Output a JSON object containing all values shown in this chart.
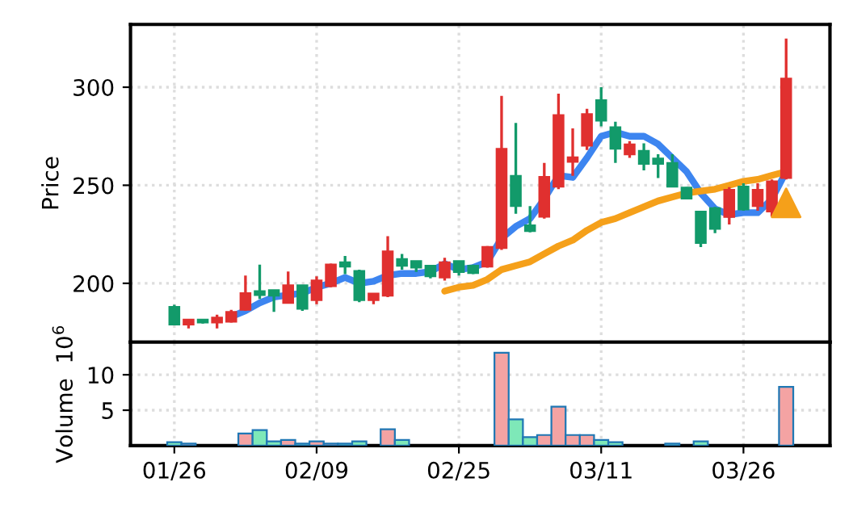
{
  "chart_data": [
    {
      "type": "candlestick",
      "ylabel": "Price",
      "categories": [
        null,
        null,
        null,
        null,
        null,
        null,
        null,
        null,
        null,
        null,
        null,
        null,
        null,
        null,
        null,
        null,
        null,
        null,
        null,
        null,
        null,
        null,
        null,
        null,
        null,
        null,
        null,
        null,
        null,
        null,
        null,
        null,
        null,
        null,
        null,
        null,
        null,
        null,
        null,
        null,
        null,
        null,
        null,
        null
      ],
      "ohlc": [
        [
          188,
          189,
          179,
          179
        ],
        [
          179,
          181.5,
          177,
          181.5
        ],
        [
          181.5,
          181.5,
          179.5,
          180
        ],
        [
          180,
          184,
          177,
          182.5
        ],
        [
          180.4,
          186.5,
          180,
          185.4
        ],
        [
          186.5,
          204,
          186,
          195
        ],
        [
          196,
          209.5,
          192,
          194
        ],
        [
          196.5,
          196.5,
          185.4,
          193.7
        ],
        [
          190,
          206,
          190,
          199
        ],
        [
          199,
          199,
          186,
          187
        ],
        [
          191.5,
          203.6,
          189.3,
          201.4
        ],
        [
          198.6,
          210,
          198,
          209.6
        ],
        [
          210.7,
          214,
          204.7,
          208.5
        ],
        [
          206.3,
          207,
          190.4,
          191.5
        ],
        [
          191.5,
          195,
          189.3,
          194.8
        ],
        [
          193.7,
          224,
          193,
          216.3
        ],
        [
          212.4,
          215,
          207,
          209
        ],
        [
          211.3,
          211.5,
          205.8,
          208
        ],
        [
          209,
          209,
          202.5,
          203.6
        ],
        [
          203,
          213,
          201.4,
          210.7
        ],
        [
          211.3,
          211.5,
          204,
          205.8
        ],
        [
          209,
          209.5,
          204.7,
          205.2
        ],
        [
          208.5,
          219,
          208,
          218.5
        ],
        [
          218,
          295.6,
          217,
          268.6
        ],
        [
          254.8,
          281.8,
          235.5,
          239.4
        ],
        [
          229.5,
          239.4,
          226,
          226.7
        ],
        [
          234,
          261.4,
          233,
          254.3
        ],
        [
          249.3,
          296.7,
          248,
          285.7
        ],
        [
          262,
          279,
          254.8,
          264.2
        ],
        [
          270.2,
          289,
          268,
          286.3
        ],
        [
          293.4,
          300,
          280,
          283
        ],
        [
          279.6,
          282.4,
          261.4,
          268.6
        ],
        [
          265.8,
          272.5,
          264,
          270.8
        ],
        [
          267.5,
          271.4,
          257.6,
          260.9
        ],
        [
          263.6,
          265.8,
          253.7,
          260.9
        ],
        [
          261.4,
          265.8,
          249,
          249.3
        ],
        [
          248.8,
          249,
          243,
          243.2
        ],
        [
          236.6,
          237,
          218.5,
          220.6
        ],
        [
          238.3,
          239,
          225.6,
          227.8
        ],
        [
          233.9,
          249,
          230,
          247.7
        ],
        [
          249.3,
          251,
          237,
          237.7
        ],
        [
          239.4,
          251,
          237,
          247.7
        ],
        [
          236.6,
          253,
          234,
          252
        ],
        [
          253.7,
          324.8,
          253,
          304.4
        ]
      ],
      "colors": [
        "#129a6a",
        "#e0302f",
        "#129a6a",
        "#e0302f",
        "#e0302f",
        "#e0302f",
        "#129a6a",
        "#129a6a",
        "#e0302f",
        "#129a6a",
        "#e0302f",
        "#e0302f",
        "#129a6a",
        "#129a6a",
        "#e0302f",
        "#e0302f",
        "#129a6a",
        "#129a6a",
        "#129a6a",
        "#e0302f",
        "#129a6a",
        "#129a6a",
        "#e0302f",
        "#e0302f",
        "#129a6a",
        "#129a6a",
        "#e0302f",
        "#e0302f",
        "#e0302f",
        "#e0302f",
        "#129a6a",
        "#129a6a",
        "#e0302f",
        "#129a6a",
        "#129a6a",
        "#129a6a",
        "#129a6a",
        "#129a6a",
        "#129a6a",
        "#e0302f",
        "#129a6a",
        "#e0302f",
        "#e0302f",
        "#e0302f"
      ],
      "series": [
        {
          "type": "line",
          "color": "#3d85f0",
          "values": [
            null,
            null,
            null,
            null,
            183,
            186,
            190,
            193,
            194,
            195,
            198,
            200,
            203,
            200,
            201,
            204,
            205,
            205,
            206,
            210,
            207,
            208,
            211,
            223,
            229,
            233,
            243,
            255,
            254,
            264,
            275,
            277,
            275,
            275,
            271,
            264,
            257,
            246,
            238,
            235,
            236,
            236,
            243,
            257
          ]
        },
        {
          "type": "line",
          "color": "#f5a01a",
          "values": [
            null,
            null,
            null,
            null,
            null,
            null,
            null,
            null,
            null,
            null,
            null,
            null,
            null,
            null,
            null,
            null,
            null,
            null,
            null,
            196,
            198,
            199,
            202,
            207,
            209,
            211,
            215,
            219,
            222,
            227,
            231,
            233,
            236,
            239,
            242,
            244,
            246,
            247,
            248,
            250,
            252,
            253,
            255,
            257
          ]
        },
        {
          "type": "scatter",
          "marker": "triangle",
          "color": "#f5a01a",
          "values": [
            null,
            null,
            null,
            null,
            null,
            null,
            null,
            null,
            null,
            null,
            null,
            null,
            null,
            null,
            null,
            null,
            null,
            null,
            null,
            null,
            null,
            null,
            null,
            null,
            null,
            null,
            null,
            null,
            null,
            null,
            null,
            null,
            null,
            null,
            null,
            null,
            null,
            null,
            null,
            null,
            null,
            null,
            null,
            241
          ]
        }
      ],
      "ylim": [
        170,
        332
      ],
      "yticks": [
        200,
        250,
        300
      ],
      "grid": true,
      "tick_labels": "y"
    },
    {
      "type": "bar",
      "ylabel": "Volume  10$^{6}$",
      "categories": [
        "01/26",
        null,
        null,
        null,
        null,
        null,
        null,
        null,
        null,
        null,
        "02/09",
        null,
        null,
        null,
        null,
        null,
        null,
        null,
        null,
        null,
        "02/25",
        null,
        null,
        null,
        null,
        null,
        null,
        null,
        null,
        null,
        "03/11",
        null,
        null,
        null,
        null,
        null,
        null,
        null,
        null,
        null,
        "03/26",
        null,
        null,
        null
      ],
      "values": [
        0.5,
        0.3,
        null,
        null,
        null,
        1.7,
        2.2,
        0.6,
        0.8,
        0.3,
        0.6,
        0.3,
        0.3,
        0.6,
        null,
        2.3,
        0.8,
        null,
        null,
        null,
        null,
        null,
        null,
        13.1,
        3.7,
        1.2,
        1.5,
        5.5,
        1.5,
        1.5,
        0.8,
        0.5,
        null,
        null,
        null,
        0.3,
        null,
        0.6,
        null,
        null,
        null,
        null,
        null,
        8.3
      ],
      "colors": [
        "#7ee8b8",
        "#f4a3a3",
        null,
        null,
        null,
        "#f4a3a3",
        "#7ee8b8",
        "#7ee8b8",
        "#f4a3a3",
        "#7ee8b8",
        "#f4a3a3",
        "#f4a3a3",
        "#7ee8b8",
        "#7ee8b8",
        null,
        "#f4a3a3",
        "#7ee8b8",
        null,
        null,
        null,
        null,
        null,
        null,
        "#f4a3a3",
        "#7ee8b8",
        "#7ee8b8",
        "#f4a3a3",
        "#f4a3a3",
        "#f4a3a3",
        "#f4a3a3",
        "#7ee8b8",
        "#7ee8b8",
        null,
        "#7ee8b8",
        "#7ee8b8",
        "#7ee8b8",
        "#7ee8b8",
        "#7ee8b8",
        "#7ee8b8",
        "#f4a3a3",
        "#7ee8b8",
        "#f4a3a3",
        "#f4a3a3",
        "#f4a3a3"
      ],
      "ylim": [
        0,
        14.6
      ],
      "yticks": [
        5,
        10
      ],
      "grid": true
    }
  ]
}
